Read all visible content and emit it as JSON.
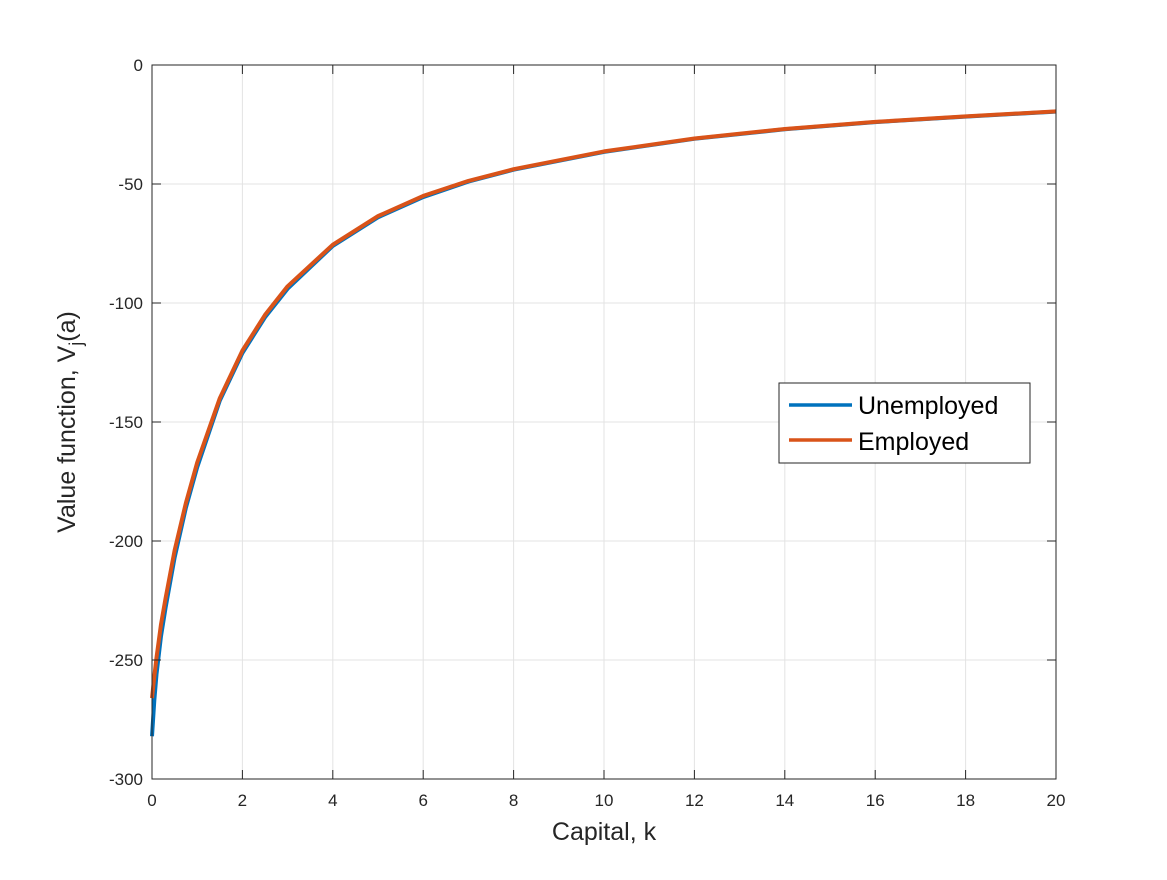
{
  "chart_data": {
    "type": "line",
    "title": "",
    "xlabel": "Capital, k",
    "ylabel": {
      "main": "Value function, V",
      "subscript": "j",
      "suffix": "(a)"
    },
    "xlim": [
      0,
      20
    ],
    "ylim": [
      -300,
      0
    ],
    "xticks": [
      0,
      2,
      4,
      6,
      8,
      10,
      12,
      14,
      16,
      18,
      20
    ],
    "yticks": [
      0,
      -50,
      -100,
      -150,
      -200,
      -250,
      -300
    ],
    "xtick_labels": [
      "0",
      "2",
      "4",
      "6",
      "8",
      "10",
      "12",
      "14",
      "16",
      "18",
      "20"
    ],
    "ytick_labels": [
      "0",
      "-50",
      "-100",
      "-150",
      "-200",
      "-250",
      "-300"
    ],
    "grid": true,
    "legend_position": "right",
    "series": [
      {
        "name": "Unemployed",
        "color": "#0072BD",
        "x": [
          0,
          0.05,
          0.1,
          0.2,
          0.3,
          0.5,
          0.75,
          1,
          1.5,
          2,
          2.5,
          3,
          4,
          5,
          6,
          7,
          8,
          10,
          12,
          14,
          16,
          18,
          20
        ],
        "y": [
          -282,
          -267,
          -256,
          -240,
          -228,
          -207,
          -186,
          -169,
          -141,
          -121,
          -106,
          -94,
          -76,
          -64,
          -55.5,
          -49,
          -44,
          -36.5,
          -31,
          -27,
          -24,
          -21.7,
          -19.6
        ]
      },
      {
        "name": "Employed",
        "color": "#D95319",
        "x": [
          0,
          0.05,
          0.1,
          0.2,
          0.3,
          0.5,
          0.75,
          1,
          1.5,
          2,
          2.5,
          3,
          4,
          5,
          6,
          7,
          8,
          10,
          12,
          14,
          16,
          18,
          20
        ],
        "y": [
          -266,
          -257,
          -249,
          -235,
          -224,
          -204,
          -184,
          -167,
          -140,
          -120,
          -105,
          -93,
          -75.5,
          -63.5,
          -55,
          -48.7,
          -43.8,
          -36.3,
          -30.9,
          -26.9,
          -23.9,
          -21.6,
          -19.5
        ]
      }
    ]
  }
}
